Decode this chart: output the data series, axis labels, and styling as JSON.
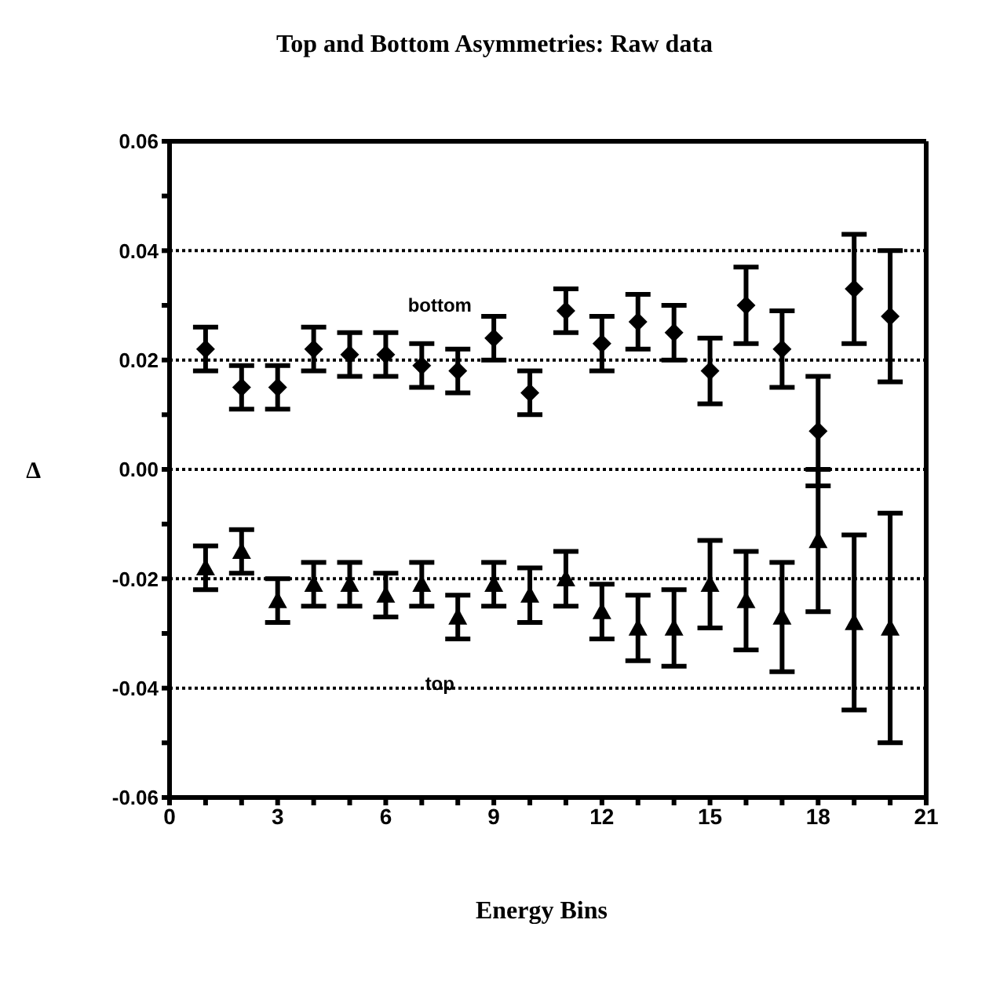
{
  "chart_data": {
    "type": "scatter",
    "title": "Top and Bottom Asymmetries: Raw data",
    "xlabel": "Energy Bins",
    "ylabel": "Δ",
    "x": [
      1,
      2,
      3,
      4,
      5,
      6,
      7,
      8,
      9,
      10,
      11,
      12,
      13,
      14,
      15,
      16,
      17,
      18,
      19,
      20
    ],
    "series": [
      {
        "name": "bottom",
        "color": "#000000",
        "marker": "diamond",
        "values": [
          0.022,
          0.015,
          0.015,
          0.022,
          0.021,
          0.021,
          0.019,
          0.018,
          0.024,
          0.014,
          0.029,
          0.023,
          0.027,
          0.025,
          0.018,
          0.03,
          0.022,
          0.007,
          0.033,
          0.028
        ],
        "errors": [
          0.004,
          0.004,
          0.004,
          0.004,
          0.004,
          0.004,
          0.004,
          0.004,
          0.004,
          0.004,
          0.004,
          0.005,
          0.005,
          0.005,
          0.006,
          0.007,
          0.007,
          0.01,
          0.01,
          0.012
        ]
      },
      {
        "name": "top",
        "color": "#000000",
        "marker": "triangle",
        "values": [
          -0.018,
          -0.015,
          -0.024,
          -0.021,
          -0.021,
          -0.023,
          -0.021,
          -0.027,
          -0.021,
          -0.023,
          -0.02,
          -0.026,
          -0.029,
          -0.029,
          -0.021,
          -0.024,
          -0.027,
          -0.013,
          -0.028,
          -0.029
        ],
        "errors": [
          0.004,
          0.004,
          0.004,
          0.004,
          0.004,
          0.004,
          0.004,
          0.004,
          0.004,
          0.005,
          0.005,
          0.005,
          0.006,
          0.007,
          0.008,
          0.009,
          0.01,
          0.013,
          0.016,
          0.021
        ]
      }
    ],
    "xlim": [
      0,
      21
    ],
    "xticks": [
      0,
      {
        "value": 1,
        "label": null
      },
      {
        "value": 2,
        "label": null
      },
      3,
      {
        "value": 4,
        "label": null
      },
      {
        "value": 5,
        "label": null
      },
      6,
      {
        "value": 7,
        "label": null
      },
      {
        "value": 8,
        "label": null
      },
      9,
      {
        "value": 10,
        "label": null
      },
      {
        "value": 11,
        "label": null
      },
      12,
      {
        "value": 13,
        "label": null
      },
      {
        "value": 14,
        "label": null
      },
      15,
      {
        "value": 16,
        "label": null
      },
      {
        "value": 17,
        "label": null
      },
      18,
      {
        "value": 19,
        "label": null
      },
      {
        "value": 20,
        "label": null
      },
      21
    ],
    "ylim": [
      -0.06,
      0.06
    ],
    "yticks": [
      {
        "value": -0.06,
        "label": "-0.06"
      },
      {
        "value": -0.05,
        "label": null
      },
      {
        "value": -0.04,
        "label": "-0.04"
      },
      {
        "value": -0.03,
        "label": null
      },
      {
        "value": -0.02,
        "label": "-0.02"
      },
      {
        "value": -0.01,
        "label": null
      },
      {
        "value": 0,
        "label": "0.00"
      },
      {
        "value": 0.01,
        "label": null
      },
      {
        "value": 0.02,
        "label": "0.02"
      },
      {
        "value": 0.03,
        "label": null
      },
      {
        "value": 0.04,
        "label": "0.04"
      },
      {
        "value": 0.05,
        "label": null
      },
      {
        "value": 0.06,
        "label": "0.06"
      }
    ],
    "grid": "y",
    "legend": false
  }
}
